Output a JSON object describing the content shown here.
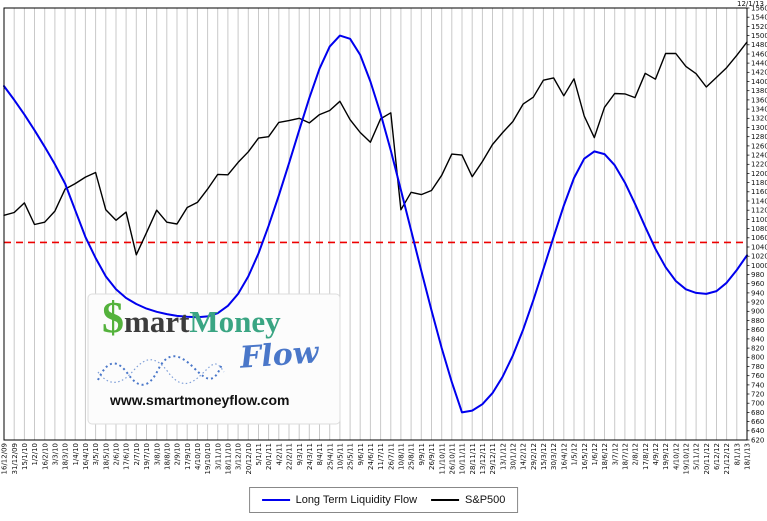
{
  "meta": {
    "top_right_date": "12/1/13"
  },
  "legend": {
    "items": [
      {
        "label": "Long Term Liquidity Flow",
        "color": "#0000ee"
      },
      {
        "label": "S&P500",
        "color": "#000000"
      }
    ]
  },
  "logo": {
    "dollar": "$",
    "mart": "mart",
    "money": "Money",
    "flow": "Flow",
    "url": "www.smartmoneyflow.com",
    "colors": {
      "dollar": "#54b23c",
      "mart": "#3c3c3c",
      "money": "#3aa583",
      "flow": "#4a77c9",
      "squiggle": "#4a77c9",
      "box_bg": "#fcfcfc",
      "box_border": "#dddddd"
    }
  },
  "chart_data": {
    "type": "line",
    "title": "",
    "xlabel": "",
    "ylabel": "",
    "ylim": [
      620,
      1560
    ],
    "ytick_step": 20,
    "grid": "vertical",
    "grid_color": "#c9c9c9",
    "axis_label_color": "#111111",
    "legend_position": "bottom-center",
    "axis_labels_side": "right",
    "threshold_line": {
      "value": 1050,
      "color": "#ee0000",
      "style": "dashed"
    },
    "categories": [
      "16/12/09",
      "31/12/09",
      "15/1/10",
      "1/2/10",
      "16/2/10",
      "3/3/10",
      "18/3/10",
      "1/4/10",
      "16/4/10",
      "3/5/10",
      "18/5/10",
      "2/6/10",
      "17/6/10",
      "2/7/10",
      "19/7/10",
      "3/8/10",
      "18/8/10",
      "2/9/10",
      "17/9/10",
      "4/10/10",
      "19/10/10",
      "3/11/10",
      "18/11/10",
      "3/12/10",
      "20/12/10",
      "5/1/11",
      "20/1/11",
      "4/2/11",
      "22/2/11",
      "9/3/11",
      "24/3/11",
      "8/4/11",
      "25/4/11",
      "10/5/11",
      "25/5/11",
      "9/6/11",
      "24/6/11",
      "11/7/11",
      "26/7/11",
      "10/8/11",
      "25/8/11",
      "9/9/11",
      "26/9/11",
      "11/10/11",
      "26/10/11",
      "10/11/11",
      "28/11/11",
      "13/12/11",
      "29/12/11",
      "13/1/12",
      "30/1/12",
      "14/2/12",
      "29/2/12",
      "15/3/12",
      "30/3/12",
      "16/4/12",
      "1/5/12",
      "16/5/12",
      "1/6/12",
      "18/6/12",
      "3/7/12",
      "18/7/12",
      "2/8/12",
      "17/8/12",
      "4/9/12",
      "19/9/12",
      "4/10/12",
      "19/10/12",
      "5/11/12",
      "20/11/12",
      "6/12/12",
      "21/12/12",
      "8/1/13",
      "18/1/13"
    ],
    "series": [
      {
        "name": "Long Term Liquidity Flow",
        "color": "#0000ee",
        "width": 2,
        "values": [
          1390,
          1360,
          1328,
          1294,
          1258,
          1220,
          1178,
          1120,
          1062,
          1016,
          976,
          948,
          929,
          916,
          906,
          899,
          894,
          890,
          888,
          887,
          889,
          896,
          912,
          938,
          976,
          1026,
          1086,
          1152,
          1222,
          1294,
          1364,
          1428,
          1476,
          1500,
          1493,
          1458,
          1400,
          1330,
          1250,
          1164,
          1076,
          988,
          902,
          820,
          746,
          680,
          684,
          698,
          722,
          758,
          804,
          860,
          924,
          992,
          1062,
          1130,
          1190,
          1232,
          1248,
          1242,
          1218,
          1180,
          1134,
          1084,
          1036,
          996,
          966,
          948,
          940,
          938,
          944,
          962,
          990,
          1022
        ]
      },
      {
        "name": "S&P500",
        "color": "#000000",
        "width": 1.4,
        "values": [
          1109,
          1115,
          1136,
          1089,
          1094,
          1118,
          1166,
          1178,
          1192,
          1202,
          1121,
          1098,
          1116,
          1023,
          1071,
          1120,
          1094,
          1090,
          1126,
          1137,
          1166,
          1198,
          1197,
          1224,
          1247,
          1277,
          1280,
          1311,
          1315,
          1320,
          1310,
          1328,
          1337,
          1357,
          1317,
          1289,
          1268,
          1319,
          1332,
          1121,
          1159,
          1154,
          1163,
          1196,
          1242,
          1240,
          1193,
          1226,
          1263,
          1289,
          1313,
          1351,
          1366,
          1403,
          1408,
          1369,
          1406,
          1325,
          1278,
          1344,
          1374,
          1373,
          1365,
          1418,
          1405,
          1461,
          1461,
          1433,
          1417,
          1388,
          1409,
          1430,
          1457,
          1486
        ]
      }
    ]
  }
}
